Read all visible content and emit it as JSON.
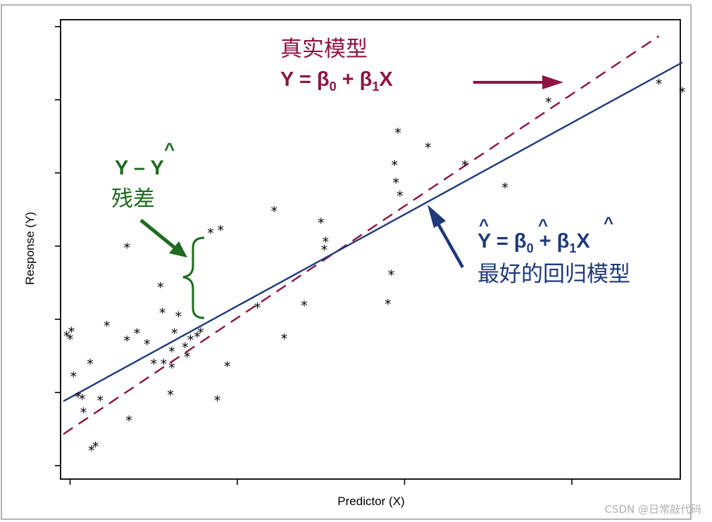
{
  "chart_data": {
    "type": "scatter",
    "xlabel": "Predictor (X)",
    "ylabel": "Response (Y)",
    "xlim": [
      0,
      10
    ],
    "ylim": [
      0,
      10
    ],
    "x_ticks": [
      0.1,
      2.6,
      5.1,
      7.6
    ],
    "y_ticks": [
      0.05,
      1.05,
      2.05,
      3.05,
      4.05,
      5.05,
      6.05
    ],
    "series": [
      {
        "marker": "*",
        "points": [
          [
            0.05,
            1.83
          ],
          [
            0.1,
            1.79
          ],
          [
            0.12,
            1.89
          ],
          [
            0.15,
            1.28
          ],
          [
            0.22,
            1.0
          ],
          [
            0.28,
            0.97
          ],
          [
            0.3,
            0.79
          ],
          [
            0.4,
            1.45
          ],
          [
            0.42,
            0.27
          ],
          [
            0.48,
            0.32
          ],
          [
            0.55,
            0.95
          ],
          [
            0.65,
            1.97
          ],
          [
            0.95,
            3.04
          ],
          [
            0.95,
            1.77
          ],
          [
            0.98,
            0.68
          ],
          [
            1.1,
            1.87
          ],
          [
            1.25,
            1.72
          ],
          [
            1.35,
            1.45
          ],
          [
            1.45,
            2.5
          ],
          [
            1.5,
            1.45
          ],
          [
            1.48,
            2.15
          ],
          [
            1.6,
            1.03
          ],
          [
            1.62,
            1.62
          ],
          [
            1.62,
            1.4
          ],
          [
            1.66,
            1.87
          ],
          [
            1.72,
            2.1
          ],
          [
            1.82,
            1.68
          ],
          [
            1.85,
            1.55
          ],
          [
            1.9,
            1.78
          ],
          [
            2.0,
            1.82
          ],
          [
            2.05,
            1.88
          ],
          [
            2.2,
            3.24
          ],
          [
            2.3,
            0.95
          ],
          [
            2.35,
            3.28
          ],
          [
            2.45,
            1.42
          ],
          [
            2.9,
            2.22
          ],
          [
            3.15,
            3.54
          ],
          [
            3.3,
            1.8
          ],
          [
            3.6,
            2.25
          ],
          [
            3.85,
            3.38
          ],
          [
            3.9,
            3.01
          ],
          [
            3.92,
            3.12
          ],
          [
            4.85,
            2.27
          ],
          [
            4.9,
            2.67
          ],
          [
            4.95,
            4.17
          ],
          [
            4.97,
            3.93
          ],
          [
            5.0,
            4.61
          ],
          [
            5.03,
            3.75
          ],
          [
            5.45,
            4.41
          ],
          [
            6.0,
            4.17
          ],
          [
            6.6,
            3.86
          ],
          [
            7.25,
            5.03
          ],
          [
            8.9,
            5.28
          ],
          [
            9.25,
            5.17
          ]
        ]
      }
    ],
    "lines": [
      {
        "style": "dashed",
        "color": "#8e1444",
        "x": [
          0,
          8.9
        ],
        "y": [
          0.48,
          5.92
        ]
      },
      {
        "style": "solid",
        "color": "#1f3a7a",
        "x": [
          0,
          9.25
        ],
        "y": [
          0.93,
          5.56
        ]
      }
    ],
    "grid": false
  },
  "annotations": {
    "true_model_title": "真实模型",
    "true_model_formula": {
      "lhs": "Y = β",
      "sub0": "0",
      "mid": " + β",
      "sub1": "1",
      "rhs": "X"
    },
    "residual_formula": {
      "text": "Y – Y",
      "hat": "^"
    },
    "residual_label": "残差",
    "fitted_formula": {
      "lhs": "Y = β",
      "sub0": "0",
      "mid": " + β",
      "sub1": "1",
      "rhs": "X",
      "hat": "^"
    },
    "best_model_label": "最好的回归模型"
  },
  "colors": {
    "true_model": "#8e1444",
    "fitted": "#1f3a7a",
    "residual": "#1e6b1e",
    "frame": "#000000"
  },
  "watermark": "CSDN @日常敲代码"
}
